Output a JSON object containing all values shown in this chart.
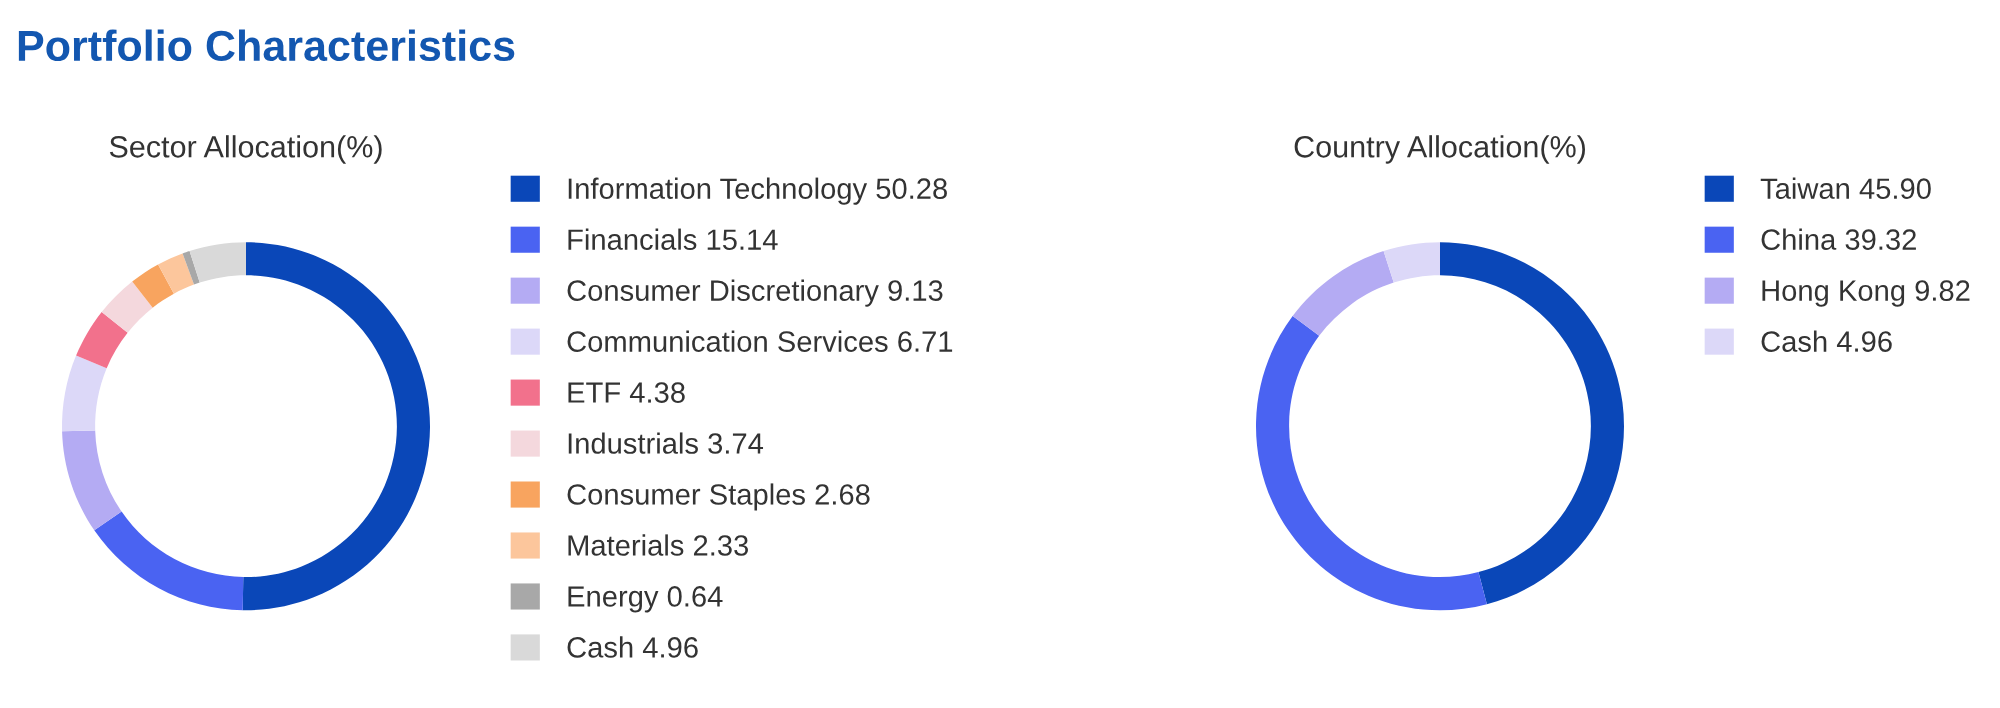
{
  "chart_data": [
    {
      "type": "donut",
      "title": "Portfolio Characteristics",
      "subtitle": "Sector Allocation(%)",
      "legend": "right",
      "categories": [
        "Information Technology",
        "Financials",
        "Consumer Discretionary",
        "Communication Services",
        "ETF",
        "Industrials",
        "Consumer Staples",
        "Materials",
        "Energy",
        "Cash"
      ],
      "values": [
        50.28,
        15.14,
        9.13,
        6.71,
        4.38,
        3.74,
        2.68,
        2.33,
        0.64,
        4.96
      ],
      "value_labels": [
        "50.28",
        "15.14",
        "9.13",
        "6.71",
        "4.38",
        "3.74",
        "2.68",
        "2.33",
        "0.64",
        "4.96"
      ],
      "colors": [
        "#0a47b8",
        "#4a63f2",
        "#b4abf3",
        "#dcd8f8",
        "#f2718c",
        "#f4d8dd",
        "#f8a45f",
        "#fcc69c",
        "#a8a8a8",
        "#d9d9d9"
      ]
    },
    {
      "type": "donut",
      "subtitle": "Country Allocation(%)",
      "legend": "right",
      "categories": [
        "Taiwan",
        "China",
        "Hong Kong",
        "Cash"
      ],
      "values": [
        45.9,
        39.32,
        9.82,
        4.96
      ],
      "value_labels": [
        "45.90",
        "39.32",
        "9.82",
        "4.96"
      ],
      "colors": [
        "#0a47b8",
        "#4a63f2",
        "#b4abf3",
        "#dcd8f8"
      ]
    }
  ]
}
